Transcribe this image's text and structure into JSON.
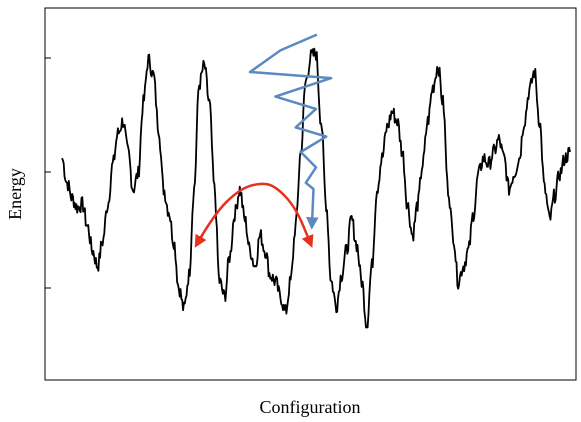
{
  "chart_data": {
    "type": "line",
    "title": "",
    "xlabel": "Configuration",
    "ylabel": "Energy",
    "grid": false,
    "legend": "none",
    "series": [
      {
        "color": "#000000",
        "x": [
          0,
          0.01,
          0.02,
          0.03,
          0.04,
          0.05,
          0.06,
          0.07,
          0.08,
          0.09,
          0.1,
          0.11,
          0.12,
          0.13,
          0.14,
          0.15,
          0.16,
          0.17,
          0.18,
          0.19,
          0.2,
          0.21,
          0.22,
          0.23,
          0.24,
          0.25,
          0.26,
          0.27,
          0.28,
          0.29,
          0.3,
          0.31,
          0.32,
          0.33,
          0.34,
          0.35,
          0.36,
          0.37,
          0.38,
          0.39,
          0.4,
          0.41,
          0.42,
          0.43,
          0.44,
          0.45,
          0.46,
          0.47,
          0.48,
          0.49,
          0.5,
          0.51,
          0.52,
          0.53,
          0.54,
          0.55,
          0.56,
          0.57,
          0.58,
          0.59,
          0.6,
          0.61,
          0.62,
          0.63,
          0.64,
          0.65,
          0.66,
          0.67,
          0.68,
          0.69,
          0.7,
          0.71,
          0.72,
          0.73,
          0.74,
          0.75,
          0.76,
          0.77,
          0.78,
          0.79,
          0.8,
          0.81,
          0.82,
          0.83,
          0.84,
          0.85,
          0.86,
          0.87,
          0.88,
          0.89,
          0.9,
          0.91,
          0.92,
          0.93,
          0.94,
          0.95,
          0.96,
          0.97,
          0.98,
          0.99,
          1
        ],
        "y": [
          0.6,
          0.52,
          0.47,
          0.44,
          0.45,
          0.38,
          0.3,
          0.25,
          0.33,
          0.45,
          0.58,
          0.68,
          0.72,
          0.62,
          0.5,
          0.55,
          0.78,
          0.92,
          0.87,
          0.7,
          0.5,
          0.43,
          0.33,
          0.18,
          0.11,
          0.22,
          0.5,
          0.84,
          0.9,
          0.78,
          0.5,
          0.2,
          0.15,
          0.28,
          0.42,
          0.5,
          0.4,
          0.3,
          0.25,
          0.35,
          0.3,
          0.22,
          0.2,
          0.15,
          0.1,
          0.2,
          0.38,
          0.62,
          0.85,
          0.93,
          0.94,
          0.72,
          0.45,
          0.2,
          0.12,
          0.22,
          0.3,
          0.4,
          0.32,
          0.2,
          0.06,
          0.25,
          0.5,
          0.6,
          0.7,
          0.75,
          0.72,
          0.62,
          0.45,
          0.35,
          0.45,
          0.58,
          0.72,
          0.83,
          0.9,
          0.78,
          0.5,
          0.35,
          0.2,
          0.25,
          0.3,
          0.42,
          0.55,
          0.6,
          0.58,
          0.62,
          0.66,
          0.6,
          0.5,
          0.55,
          0.6,
          0.72,
          0.82,
          0.88,
          0.72,
          0.5,
          0.4,
          0.48,
          0.55,
          0.6,
          0.62
        ]
      }
    ],
    "annotations": [
      {
        "type": "arrow",
        "color": "#e8301e",
        "x": [
          0.265,
          0.3,
          0.35,
          0.39,
          0.42,
          0.46,
          0.49
        ],
        "y": [
          0.32,
          0.42,
          0.5,
          0.52,
          0.51,
          0.44,
          0.32
        ]
      },
      {
        "type": "arrow",
        "color": "#5b8ac1",
        "x": [
          0.5,
          0.43,
          0.37,
          0.53,
          0.42,
          0.5,
          0.46,
          0.52,
          0.47,
          0.5,
          0.48,
          0.495,
          0.492
        ],
        "y": [
          1.0,
          0.95,
          0.88,
          0.86,
          0.8,
          0.76,
          0.7,
          0.67,
          0.62,
          0.57,
          0.52,
          0.5,
          0.38
        ]
      }
    ]
  }
}
